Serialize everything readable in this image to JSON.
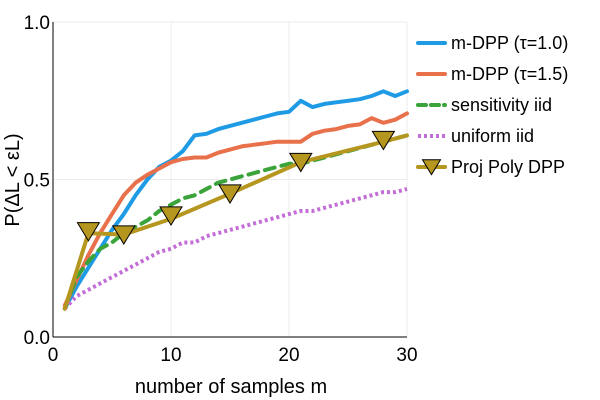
{
  "chart_data": {
    "type": "line",
    "title": "",
    "xlabel": "number of samples m",
    "ylabel": "P(ΔL < εL)",
    "xlim": [
      0,
      30
    ],
    "ylim": [
      0,
      1
    ],
    "xticks": [
      0,
      10,
      20,
      30
    ],
    "xtick_labels": [
      "0",
      "10",
      "20",
      "30"
    ],
    "yticks": [
      0,
      0.5,
      1
    ],
    "ytick_labels": [
      "0.0",
      "0.5",
      "1.0"
    ],
    "grid": true,
    "legend_position": "top-right",
    "series": [
      {
        "name": "m-DPP (τ=1.0)",
        "color": "#1f9be6",
        "style": "solid",
        "x": [
          1,
          2,
          3,
          4,
          5,
          6,
          7,
          8,
          9,
          10,
          11,
          12,
          13,
          14,
          15,
          16,
          17,
          18,
          19,
          20,
          21,
          22,
          23,
          24,
          25,
          26,
          27,
          28,
          29,
          30
        ],
        "y": [
          0.09,
          0.16,
          0.22,
          0.28,
          0.34,
          0.39,
          0.45,
          0.5,
          0.54,
          0.56,
          0.59,
          0.64,
          0.645,
          0.66,
          0.67,
          0.68,
          0.69,
          0.7,
          0.71,
          0.715,
          0.75,
          0.73,
          0.74,
          0.745,
          0.75,
          0.755,
          0.765,
          0.78,
          0.765,
          0.78
        ]
      },
      {
        "name": "m-DPP (τ=1.5)",
        "color": "#e8704a",
        "style": "solid",
        "x": [
          1,
          2,
          3,
          4,
          5,
          6,
          7,
          8,
          9,
          10,
          11,
          12,
          13,
          14,
          15,
          16,
          17,
          18,
          19,
          20,
          21,
          22,
          23,
          24,
          25,
          26,
          27,
          28,
          29,
          30
        ],
        "y": [
          0.1,
          0.18,
          0.26,
          0.33,
          0.39,
          0.45,
          0.49,
          0.515,
          0.535,
          0.555,
          0.565,
          0.57,
          0.57,
          0.585,
          0.595,
          0.605,
          0.61,
          0.615,
          0.62,
          0.62,
          0.62,
          0.645,
          0.655,
          0.66,
          0.67,
          0.675,
          0.695,
          0.68,
          0.69,
          0.71
        ]
      },
      {
        "name": "sensitivity iid",
        "color": "#3aa33a",
        "style": "dashed",
        "x": [
          1,
          2,
          3,
          4,
          5,
          6,
          7,
          8,
          9,
          10,
          11,
          12,
          13,
          14,
          15,
          16,
          17,
          18,
          19,
          20,
          21,
          22,
          23,
          24,
          25,
          26,
          27,
          28,
          29,
          30
        ],
        "y": [
          0.09,
          0.19,
          0.24,
          0.28,
          0.3,
          0.33,
          0.35,
          0.37,
          0.4,
          0.42,
          0.44,
          0.45,
          0.47,
          0.49,
          0.5,
          0.51,
          0.52,
          0.53,
          0.54,
          0.55,
          0.55,
          0.56,
          0.57,
          0.58,
          0.59,
          0.6,
          0.61,
          0.62,
          0.63,
          0.64
        ]
      },
      {
        "name": "uniform iid",
        "color": "#c36ed6",
        "style": "dotted",
        "x": [
          1,
          2,
          3,
          4,
          5,
          6,
          7,
          8,
          9,
          10,
          11,
          12,
          13,
          14,
          15,
          16,
          17,
          18,
          19,
          20,
          21,
          22,
          23,
          24,
          25,
          26,
          27,
          28,
          29,
          30
        ],
        "y": [
          0.09,
          0.13,
          0.15,
          0.17,
          0.19,
          0.21,
          0.23,
          0.25,
          0.27,
          0.28,
          0.3,
          0.3,
          0.32,
          0.33,
          0.34,
          0.35,
          0.36,
          0.37,
          0.38,
          0.39,
          0.4,
          0.4,
          0.41,
          0.42,
          0.43,
          0.44,
          0.45,
          0.46,
          0.46,
          0.47
        ]
      },
      {
        "name": "Proj Poly DPP",
        "color": "#b5961f",
        "style": "solid",
        "marker": "triangle-down",
        "x": [
          1,
          3,
          6,
          10,
          15,
          21,
          28,
          30
        ],
        "y": [
          0.09,
          0.33,
          0.325,
          0.375,
          0.455,
          0.555,
          0.62,
          0.64
        ],
        "marker_x": [
          3,
          6,
          10,
          15,
          21,
          28
        ],
        "marker_y": [
          0.335,
          0.325,
          0.385,
          0.455,
          0.555,
          0.625
        ]
      }
    ]
  }
}
